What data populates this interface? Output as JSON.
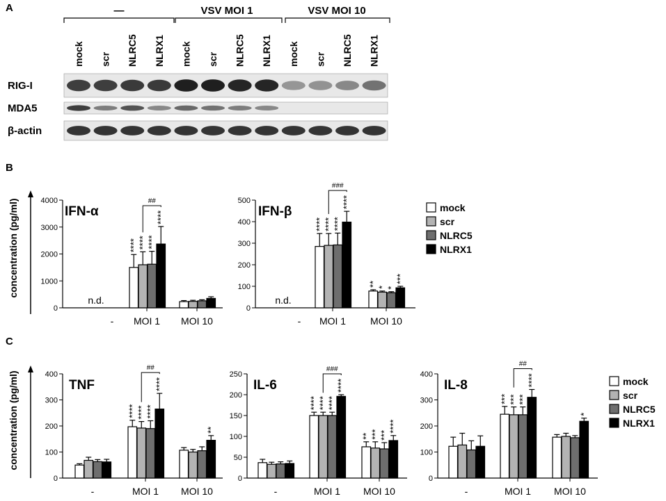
{
  "panel_labels": {
    "a": "A",
    "b": "B",
    "c": "C"
  },
  "blot": {
    "group_labels": [
      "—",
      "VSV MOI 1",
      "VSV MOI 10"
    ],
    "lanes": [
      "mock",
      "scr",
      "NLRC5",
      "NLRX1",
      "mock",
      "scr",
      "NLRC5",
      "NLRX1",
      "mock",
      "scr",
      "NLRC5",
      "NLRX1"
    ],
    "rows": [
      "RIG-I",
      "MDA5",
      "β-actin"
    ],
    "intensity": [
      [
        0.8,
        0.8,
        0.82,
        0.82,
        0.95,
        0.95,
        0.92,
        0.92,
        0.38,
        0.4,
        0.45,
        0.55
      ],
      [
        0.8,
        0.5,
        0.7,
        0.45,
        0.6,
        0.55,
        0.5,
        0.45,
        0.0,
        0.0,
        0.0,
        0.0
      ],
      [
        0.85,
        0.85,
        0.85,
        0.85,
        0.85,
        0.85,
        0.85,
        0.85,
        0.85,
        0.85,
        0.85,
        0.85
      ]
    ]
  },
  "y_axis_title": "concentration (pg/ml)",
  "legend_items": [
    "mock",
    "scr",
    "NLRC5",
    "NLRX1"
  ],
  "series_colors": [
    "#ffffff",
    "#b3b3b3",
    "#6e6e6e",
    "#000000"
  ],
  "categories": [
    "-",
    "MOI 1",
    "MOI 10"
  ],
  "chart_data": [
    {
      "type": "bar",
      "title": "IFN-α",
      "ylim": [
        0,
        4000
      ],
      "yticks": [
        0,
        1000,
        2000,
        3000,
        4000
      ],
      "categories": [
        "-",
        "MOI 1",
        "MOI 10"
      ],
      "na_label": "n.d.",
      "series": [
        {
          "name": "mock",
          "values": [
            null,
            1500,
            230
          ],
          "errors": [
            null,
            480,
            40
          ]
        },
        {
          "name": "scr",
          "values": [
            null,
            1600,
            240
          ],
          "errors": [
            null,
            480,
            40
          ]
        },
        {
          "name": "NLRC5",
          "values": [
            null,
            1620,
            260
          ],
          "errors": [
            null,
            480,
            40
          ]
        },
        {
          "name": "NLRX1",
          "values": [
            null,
            2370,
            350
          ],
          "errors": [
            null,
            650,
            60
          ]
        }
      ],
      "annotations": [
        [
          "",
          "",
          "",
          ""
        ],
        [
          "****",
          "****",
          "****",
          "****"
        ],
        [
          "",
          "",
          "",
          ""
        ]
      ],
      "bracket_label": "##"
    },
    {
      "type": "bar",
      "title": "IFN-β",
      "ylim": [
        0,
        500
      ],
      "yticks": [
        0,
        100,
        200,
        300,
        400,
        500
      ],
      "categories": [
        "-",
        "MOI 1",
        "MOI 10"
      ],
      "na_label": "n.d.",
      "series": [
        {
          "name": "mock",
          "values": [
            null,
            285,
            78
          ],
          "errors": [
            null,
            60,
            6
          ]
        },
        {
          "name": "scr",
          "values": [
            null,
            290,
            73
          ],
          "errors": [
            null,
            55,
            5
          ]
        },
        {
          "name": "NLRC5",
          "values": [
            null,
            292,
            70
          ],
          "errors": [
            null,
            55,
            5
          ]
        },
        {
          "name": "NLRX1",
          "values": [
            null,
            398,
            93
          ],
          "errors": [
            null,
            50,
            7
          ]
        }
      ],
      "annotations": [
        [
          "",
          "",
          "",
          ""
        ],
        [
          "****",
          "****",
          "****",
          "****"
        ],
        [
          "**",
          "*",
          "*",
          "***"
        ]
      ],
      "bracket_label": "###"
    },
    {
      "type": "bar",
      "title": "TNF",
      "ylim": [
        0,
        400
      ],
      "yticks": [
        0,
        100,
        200,
        300,
        400
      ],
      "categories": [
        "-",
        "MOI 1",
        "MOI 10"
      ],
      "series": [
        {
          "name": "mock",
          "values": [
            50,
            197,
            107
          ],
          "errors": [
            5,
            25,
            10
          ]
        },
        {
          "name": "scr",
          "values": [
            68,
            192,
            100
          ],
          "errors": [
            12,
            25,
            10
          ]
        },
        {
          "name": "NLRC5",
          "values": [
            63,
            190,
            105
          ],
          "errors": [
            8,
            30,
            15
          ]
        },
        {
          "name": "NLRX1",
          "values": [
            62,
            265,
            145
          ],
          "errors": [
            10,
            60,
            18
          ]
        }
      ],
      "annotations": [
        [
          "",
          "",
          "",
          ""
        ],
        [
          "****",
          "****",
          "****",
          "****"
        ],
        [
          "",
          "",
          "",
          "**"
        ]
      ],
      "bracket_label": "##"
    },
    {
      "type": "bar",
      "title": "IL-6",
      "ylim": [
        0,
        250
      ],
      "yticks": [
        0,
        50,
        100,
        150,
        200,
        250
      ],
      "categories": [
        "-",
        "MOI 1",
        "MOI 10"
      ],
      "series": [
        {
          "name": "mock",
          "values": [
            37,
            150,
            75
          ],
          "errors": [
            8,
            8,
            12
          ]
        },
        {
          "name": "scr",
          "values": [
            33,
            150,
            72
          ],
          "errors": [
            5,
            8,
            15
          ]
        },
        {
          "name": "NLRC5",
          "values": [
            34,
            150,
            70
          ],
          "errors": [
            5,
            8,
            15
          ]
        },
        {
          "name": "NLRX1",
          "values": [
            35,
            196,
            90
          ],
          "errors": [
            6,
            4,
            12
          ]
        }
      ],
      "annotations": [
        [
          "",
          "",
          "",
          ""
        ],
        [
          "****",
          "****",
          "****",
          "****"
        ],
        [
          "**",
          "***",
          "***",
          "****"
        ]
      ],
      "bracket_label": "###"
    },
    {
      "type": "bar",
      "title": "IL-8",
      "ylim": [
        0,
        400
      ],
      "yticks": [
        0,
        100,
        200,
        300,
        400
      ],
      "categories": [
        "-",
        "MOI 1",
        "MOI 10"
      ],
      "series": [
        {
          "name": "mock",
          "values": [
            122,
            245,
            157
          ],
          "errors": [
            35,
            30,
            10
          ]
        },
        {
          "name": "scr",
          "values": [
            127,
            243,
            160
          ],
          "errors": [
            45,
            30,
            12
          ]
        },
        {
          "name": "NLRC5",
          "values": [
            108,
            243,
            155
          ],
          "errors": [
            35,
            30,
            8
          ]
        },
        {
          "name": "NLRX1",
          "values": [
            122,
            310,
            218
          ],
          "errors": [
            40,
            30,
            12
          ]
        }
      ],
      "annotations": [
        [
          "",
          "",
          "",
          ""
        ],
        [
          "***",
          "***",
          "***",
          "****"
        ],
        [
          "",
          "",
          "",
          "*"
        ]
      ],
      "bracket_label": "##"
    }
  ]
}
